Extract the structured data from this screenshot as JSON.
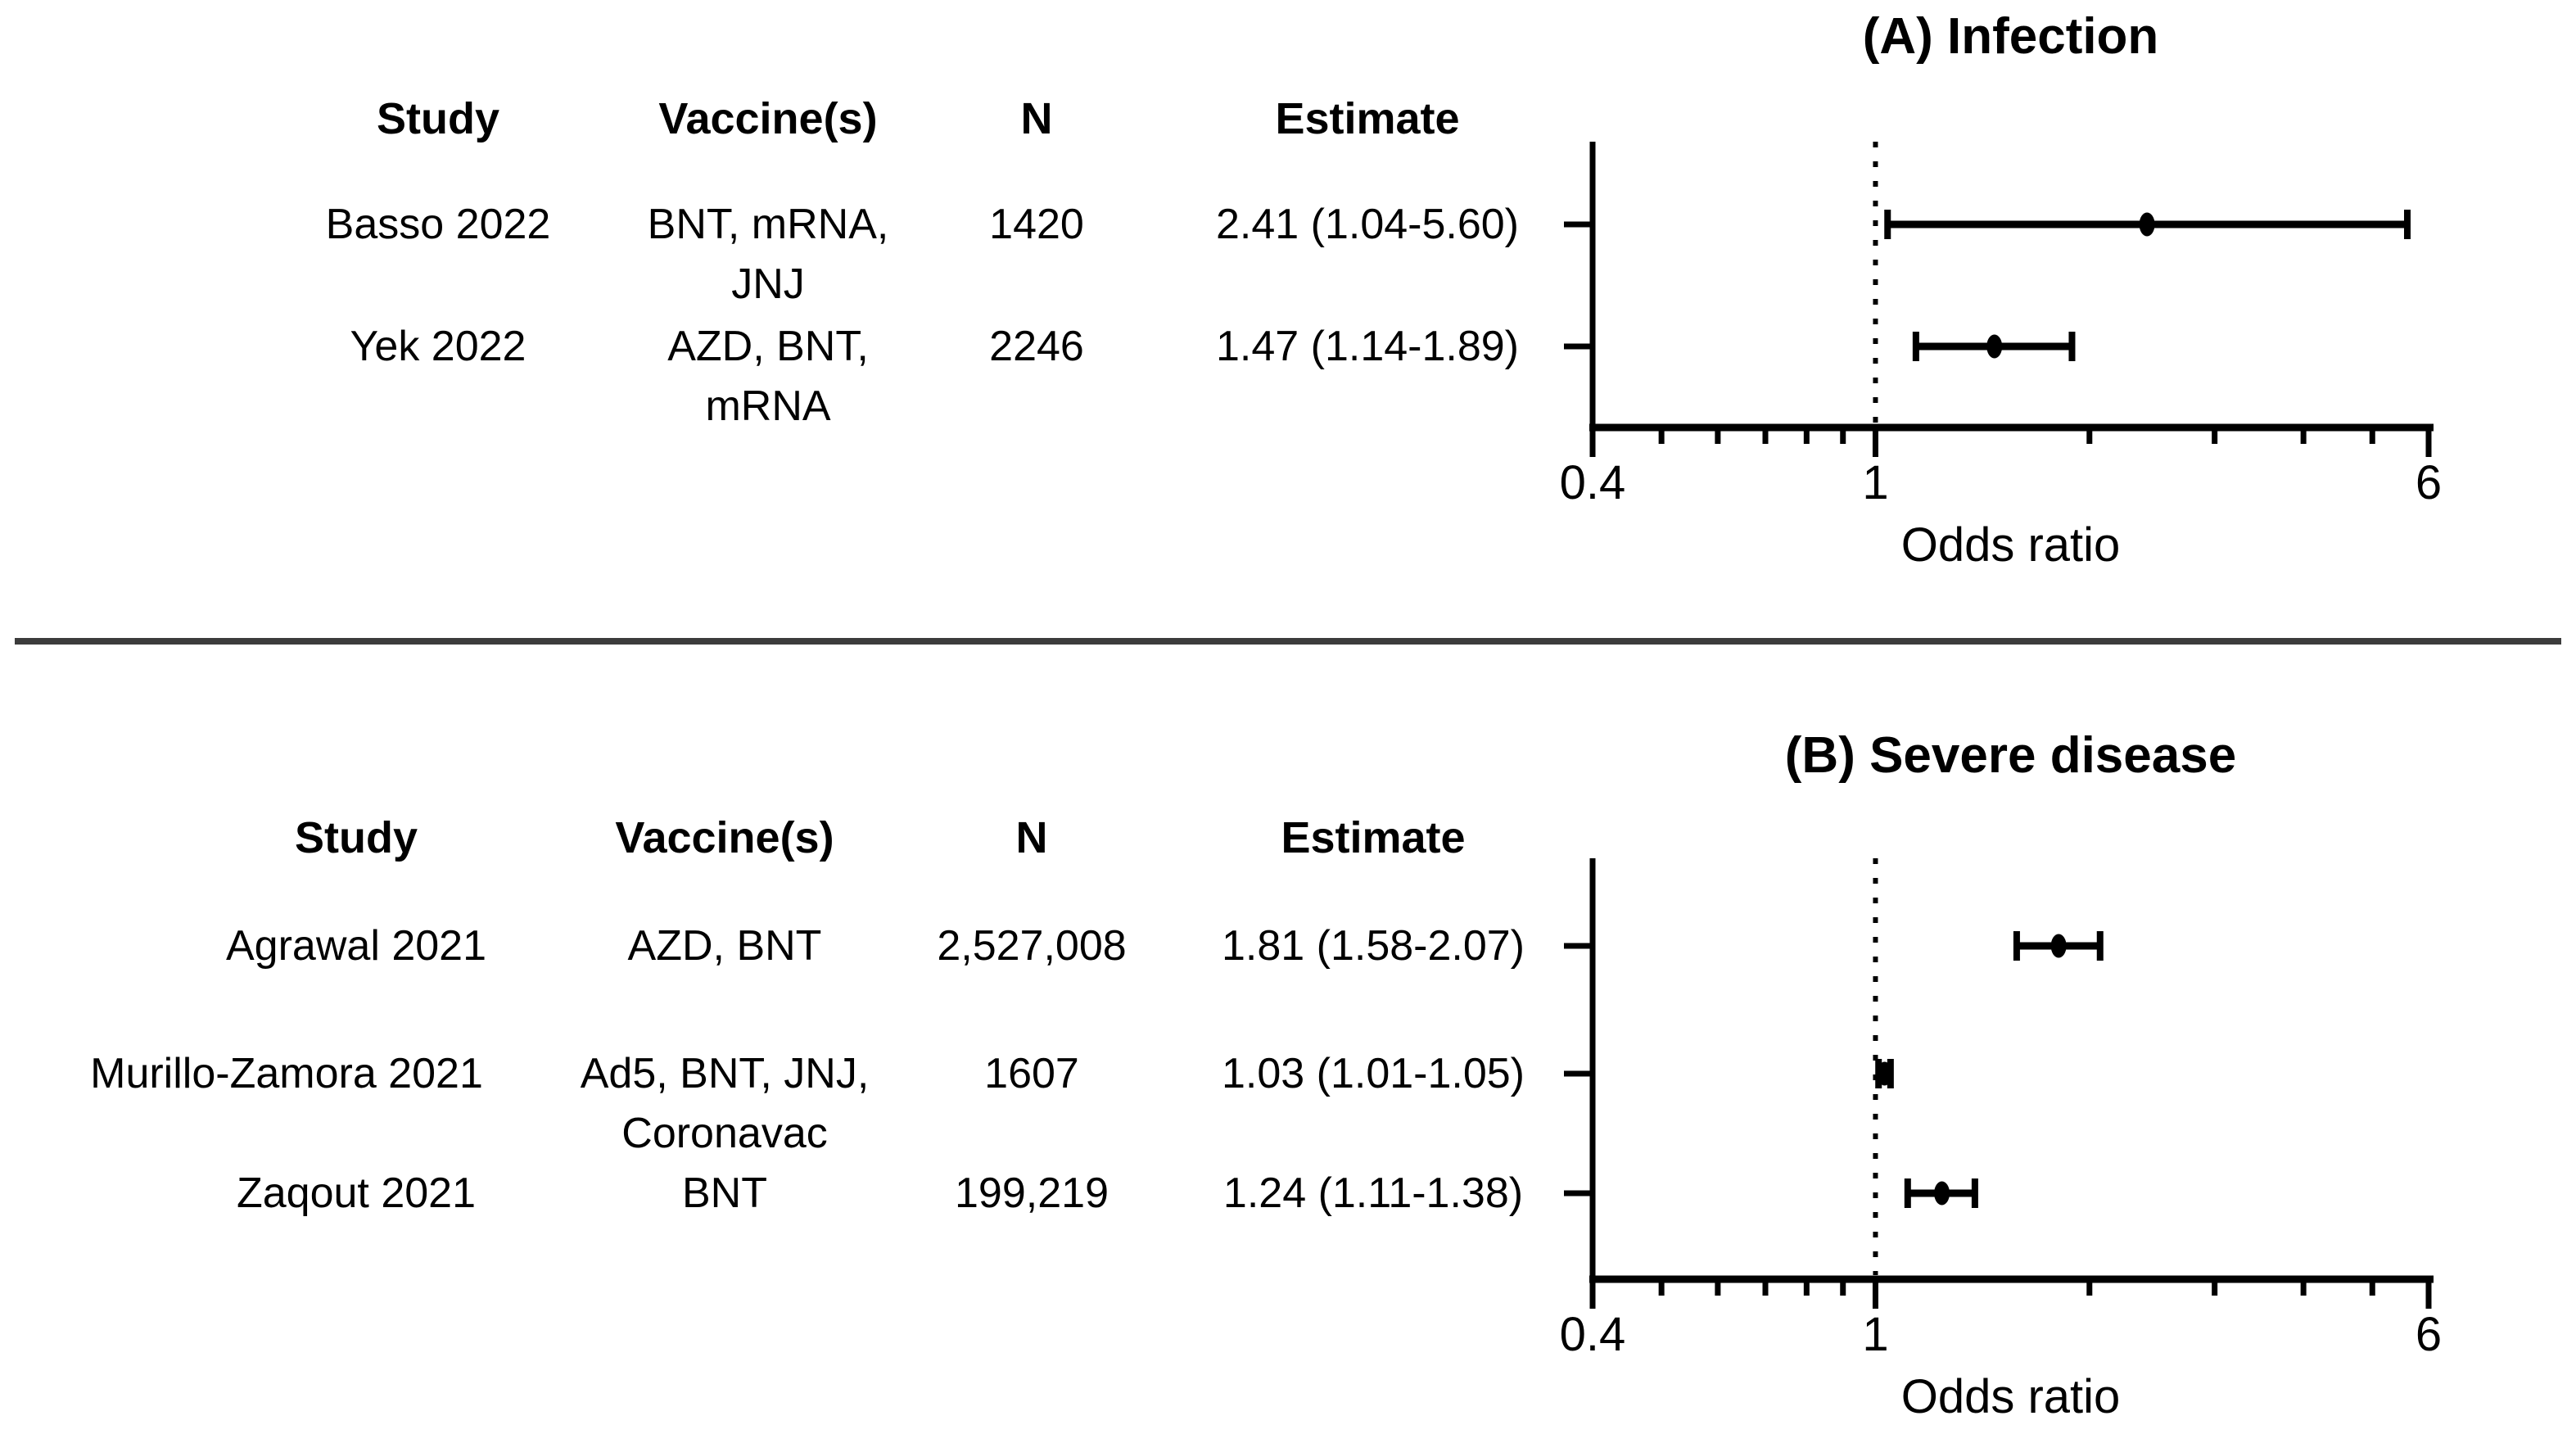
{
  "figure": {
    "background": "#ffffff",
    "text_color": "#000000",
    "line_color": "#000000",
    "divider_color": "#3c3c3c"
  },
  "chart_data": [
    {
      "type": "forest",
      "panel": "A",
      "title": "(A) Infection",
      "xlabel": "Odds ratio",
      "x_scale": "log",
      "xlim": [
        0.4,
        6
      ],
      "x_major_ticks": [
        "0.4",
        "1",
        "6"
      ],
      "x_minor_ticks": [
        0.5,
        0.6,
        0.7,
        0.8,
        0.9,
        2,
        3,
        4,
        5
      ],
      "reference_line": 1,
      "grid": false,
      "table_columns": [
        "Study",
        "Vaccine(s)",
        "N",
        "Estimate"
      ],
      "rows": [
        {
          "study": "Basso 2022",
          "vaccines_lines": [
            "BNT, mRNA,",
            "JNJ"
          ],
          "n": "1420",
          "estimate_label": "2.41 (1.04-5.60)",
          "odds_ratio": 2.41,
          "ci_low": 1.04,
          "ci_high": 5.6
        },
        {
          "study": "Yek 2022",
          "vaccines_lines": [
            "AZD, BNT,",
            "mRNA"
          ],
          "n": "2246",
          "estimate_label": "1.47 (1.14-1.89)",
          "odds_ratio": 1.47,
          "ci_low": 1.14,
          "ci_high": 1.89
        }
      ]
    },
    {
      "type": "forest",
      "panel": "B",
      "title": "(B) Severe disease",
      "xlabel": "Odds ratio",
      "x_scale": "log",
      "xlim": [
        0.4,
        6
      ],
      "x_major_ticks": [
        "0.4",
        "1",
        "6"
      ],
      "x_minor_ticks": [
        0.5,
        0.6,
        0.7,
        0.8,
        0.9,
        2,
        3,
        4,
        5
      ],
      "reference_line": 1,
      "grid": false,
      "table_columns": [
        "Study",
        "Vaccine(s)",
        "N",
        "Estimate"
      ],
      "rows": [
        {
          "study": "Agrawal 2021",
          "vaccines_lines": [
            "AZD, BNT"
          ],
          "n": "2,527,008",
          "estimate_label": "1.81 (1.58-2.07)",
          "odds_ratio": 1.81,
          "ci_low": 1.58,
          "ci_high": 2.07
        },
        {
          "study": "Murillo-Zamora 2021",
          "vaccines_lines": [
            "Ad5, BNT, JNJ,",
            "Coronavac"
          ],
          "n": "1607",
          "estimate_label": "1.03 (1.01-1.05)",
          "odds_ratio": 1.03,
          "ci_low": 1.01,
          "ci_high": 1.05
        },
        {
          "study": "Zaqout 2021",
          "vaccines_lines": [
            "BNT"
          ],
          "n": "199,219",
          "estimate_label": "1.24 (1.11-1.38)",
          "odds_ratio": 1.24,
          "ci_low": 1.11,
          "ci_high": 1.38
        }
      ]
    }
  ]
}
